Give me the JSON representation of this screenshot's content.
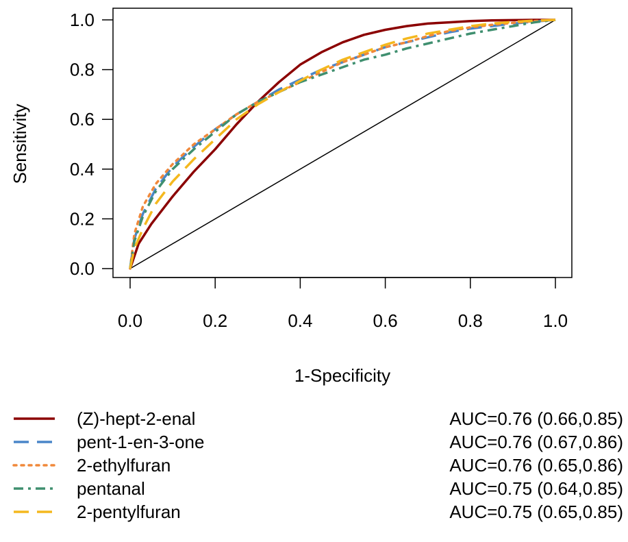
{
  "chart_data": {
    "type": "line",
    "xlabel": "1-Specificity",
    "ylabel": "Sensitivity",
    "xlim": [
      0,
      1
    ],
    "ylim": [
      0,
      1
    ],
    "x_ticks": [
      "0.0",
      "0.2",
      "0.4",
      "0.6",
      "0.8",
      "1.0"
    ],
    "y_ticks": [
      "0.0",
      "0.2",
      "0.4",
      "0.6",
      "0.8",
      "1.0"
    ],
    "grid": false,
    "legend_position": "bottom",
    "reference_line": {
      "x": [
        0,
        1
      ],
      "y": [
        0,
        1
      ],
      "color": "#000000"
    },
    "series": [
      {
        "name": "(Z)-hept-2-enal",
        "auc_label": "AUC=0.76 (0.66,0.85)",
        "color": "#8B0000",
        "dash": "solid",
        "x": [
          0,
          0.02,
          0.05,
          0.1,
          0.15,
          0.2,
          0.25,
          0.3,
          0.35,
          0.4,
          0.45,
          0.5,
          0.55,
          0.6,
          0.65,
          0.7,
          0.75,
          0.8,
          0.85,
          0.9,
          0.95,
          1.0
        ],
        "y": [
          0,
          0.1,
          0.18,
          0.29,
          0.39,
          0.48,
          0.58,
          0.67,
          0.75,
          0.82,
          0.87,
          0.91,
          0.94,
          0.96,
          0.975,
          0.985,
          0.99,
          0.995,
          0.998,
          0.999,
          1.0,
          1.0
        ]
      },
      {
        "name": "pent-1-en-3-one",
        "auc_label": "AUC=0.76 (0.67,0.86)",
        "color": "#4A86C8",
        "dash": "long-dash",
        "x": [
          0,
          0.01,
          0.03,
          0.06,
          0.1,
          0.15,
          0.2,
          0.25,
          0.3,
          0.35,
          0.4,
          0.45,
          0.5,
          0.55,
          0.6,
          0.65,
          0.7,
          0.75,
          0.8,
          0.85,
          0.9,
          0.95,
          1.0
        ],
        "y": [
          0,
          0.12,
          0.22,
          0.32,
          0.41,
          0.49,
          0.56,
          0.62,
          0.67,
          0.72,
          0.76,
          0.8,
          0.83,
          0.86,
          0.89,
          0.91,
          0.93,
          0.95,
          0.965,
          0.975,
          0.985,
          0.993,
          1.0
        ]
      },
      {
        "name": "2-ethylfuran",
        "auc_label": "AUC=0.76 (0.65,0.86)",
        "color": "#F0883A",
        "dash": "dotted",
        "x": [
          0,
          0.01,
          0.03,
          0.06,
          0.1,
          0.15,
          0.2,
          0.25,
          0.3,
          0.35,
          0.4,
          0.45,
          0.5,
          0.55,
          0.6,
          0.65,
          0.7,
          0.75,
          0.8,
          0.85,
          0.9,
          0.95,
          1.0
        ],
        "y": [
          0,
          0.14,
          0.25,
          0.34,
          0.42,
          0.5,
          0.56,
          0.62,
          0.67,
          0.71,
          0.75,
          0.79,
          0.83,
          0.86,
          0.89,
          0.91,
          0.935,
          0.955,
          0.97,
          0.98,
          0.988,
          0.995,
          1.0
        ]
      },
      {
        "name": "pentanal",
        "auc_label": "AUC=0.75 (0.64,0.85)",
        "color": "#3F8F6F",
        "dash": "dash-dot",
        "x": [
          0,
          0.01,
          0.03,
          0.06,
          0.1,
          0.15,
          0.2,
          0.25,
          0.3,
          0.35,
          0.4,
          0.45,
          0.5,
          0.55,
          0.6,
          0.65,
          0.7,
          0.75,
          0.8,
          0.85,
          0.9,
          0.95,
          1.0
        ],
        "y": [
          0,
          0.11,
          0.21,
          0.31,
          0.4,
          0.48,
          0.55,
          0.62,
          0.67,
          0.71,
          0.75,
          0.78,
          0.81,
          0.84,
          0.86,
          0.885,
          0.905,
          0.925,
          0.945,
          0.96,
          0.975,
          0.99,
          1.0
        ]
      },
      {
        "name": "2-pentylfuran",
        "auc_label": "AUC=0.75 (0.65,0.85)",
        "color": "#F4B81E",
        "dash": "long-dash",
        "x": [
          0,
          0.01,
          0.03,
          0.06,
          0.1,
          0.15,
          0.2,
          0.25,
          0.3,
          0.35,
          0.4,
          0.45,
          0.5,
          0.55,
          0.6,
          0.65,
          0.7,
          0.75,
          0.8,
          0.85,
          0.9,
          0.95,
          1.0
        ],
        "y": [
          0,
          0.08,
          0.16,
          0.26,
          0.35,
          0.44,
          0.52,
          0.6,
          0.66,
          0.71,
          0.755,
          0.8,
          0.84,
          0.87,
          0.9,
          0.925,
          0.945,
          0.96,
          0.975,
          0.985,
          0.992,
          0.997,
          1.0
        ]
      }
    ]
  }
}
